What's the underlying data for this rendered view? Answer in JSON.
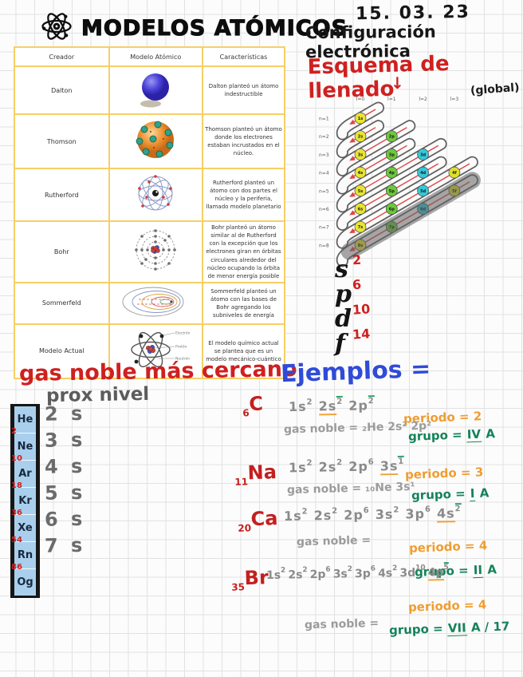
{
  "header": {
    "title": "MODELOS ATÓMICOS"
  },
  "notes_top": {
    "date": "15. 03. 23",
    "subtitle": "Configuración electrónica",
    "scheme_heading": "Esquema de llenado",
    "scheme_arrow": "↓",
    "scheme_note": "(global)"
  },
  "models_table": {
    "headers": [
      "Creador",
      "Modelo Atómico",
      "Características"
    ],
    "rows": [
      {
        "creator": "Dalton",
        "icon": "dalton-solid-sphere",
        "text": "Dalton planteó un átomo indestructible"
      },
      {
        "creator": "Thomson",
        "icon": "thomson-plum-pudding",
        "text": "Thomson planteó un átomo donde los electrones estaban incrustados en el núcleo."
      },
      {
        "creator": "Rutherford",
        "icon": "rutherford-planetary",
        "text": "Rutherford planteó un átomo con dos partes el núcleo y la periferia, llamado modelo planetario"
      },
      {
        "creator": "Bohr",
        "icon": "bohr-orbits",
        "text": "Bohr planteó un átomo similar al de Rutherford con la excepción que los electrones giran en órbitas circulares alrededor del núcleo ocupando la órbita de menor energía posible"
      },
      {
        "creator": "Sommerfeld",
        "icon": "sommerfeld-ellipses",
        "text": "Sommerfeld planteó un átomo con las bases de Bohr agregando los subniveles de energía"
      },
      {
        "creator": "Modelo Actual",
        "icon": "quantum-model",
        "text": "El modelo químico actual se plantea que es un modelo mecánico-cuántico"
      }
    ],
    "quantum_labels": {
      "electron": "Electrón",
      "proton": "Protón",
      "neutron": "Neutrón"
    }
  },
  "filling_scheme": {
    "col_labels": [
      "l=0",
      "l=1",
      "l=2",
      "l=3"
    ],
    "row_labels": [
      "n=1",
      "n=2",
      "n=3",
      "n=4",
      "n=5",
      "n=6",
      "n=7",
      "n=8"
    ],
    "subshells": [
      {
        "label": "1s",
        "n": 1,
        "l": 0
      },
      {
        "label": "2s",
        "n": 2,
        "l": 0
      },
      {
        "label": "2p",
        "n": 2,
        "l": 1
      },
      {
        "label": "3s",
        "n": 3,
        "l": 0
      },
      {
        "label": "3p",
        "n": 3,
        "l": 1
      },
      {
        "label": "3d",
        "n": 3,
        "l": 2
      },
      {
        "label": "4s",
        "n": 4,
        "l": 0
      },
      {
        "label": "4p",
        "n": 4,
        "l": 1
      },
      {
        "label": "4d",
        "n": 4,
        "l": 2
      },
      {
        "label": "4f",
        "n": 4,
        "l": 3
      },
      {
        "label": "5s",
        "n": 5,
        "l": 0
      },
      {
        "label": "5p",
        "n": 5,
        "l": 1
      },
      {
        "label": "5d",
        "n": 5,
        "l": 2
      },
      {
        "label": "5f",
        "n": 5,
        "l": 3
      },
      {
        "label": "6s",
        "n": 6,
        "l": 0
      },
      {
        "label": "6p",
        "n": 6,
        "l": 1
      },
      {
        "label": "6d",
        "n": 6,
        "l": 2
      },
      {
        "label": "7s",
        "n": 7,
        "l": 0
      },
      {
        "label": "7p",
        "n": 7,
        "l": 1
      },
      {
        "label": "8s",
        "n": 8,
        "l": 0
      }
    ],
    "colors": {
      "0": "#e8e434",
      "1": "#6cc93a",
      "2": "#35c8d8",
      "3": "#dede2e"
    },
    "highlight_diagonal": 8
  },
  "capacities": [
    {
      "letter": "s",
      "max": "2"
    },
    {
      "letter": "p",
      "max": "6"
    },
    {
      "letter": "d",
      "max": "10"
    },
    {
      "letter": "f",
      "max": "14"
    }
  ],
  "noble_gases": {
    "heading": "gas noble más cercano",
    "subheading": "prox nivel",
    "items": [
      {
        "symbol": "He",
        "z": "2",
        "next_level": "2 s"
      },
      {
        "symbol": "Ne",
        "z": "10",
        "next_level": "3 s"
      },
      {
        "symbol": "Ar",
        "z": "18",
        "next_level": "4 s"
      },
      {
        "symbol": "Kr",
        "z": "36",
        "next_level": "5 s"
      },
      {
        "symbol": "Xe",
        "z": "54",
        "next_level": "6 s"
      },
      {
        "symbol": "Rn",
        "z": "86",
        "next_level": "7 s"
      },
      {
        "symbol": "Og",
        "z": "",
        "next_level": ""
      }
    ]
  },
  "examples": {
    "heading": "Ejemplos =",
    "items": [
      {
        "z": "6",
        "symbol": "C",
        "config_tokens": [
          [
            "1s",
            "2",
            ""
          ],
          [
            "2s",
            "2",
            "og"
          ],
          [
            "2p",
            "2",
            "g"
          ]
        ],
        "noble_label": "gas noble =",
        "noble_value": "₂He 2s² 2p²",
        "periodo_label": "periodo =",
        "periodo_value": "2",
        "grupo_label": "grupo =",
        "grupo_roman": "IV",
        "grupo_rest": "A"
      },
      {
        "z": "11",
        "symbol": "Na",
        "config_tokens": [
          [
            "1s",
            "2",
            ""
          ],
          [
            "2s",
            "2",
            ""
          ],
          [
            "2p",
            "6",
            ""
          ],
          [
            "3s",
            "1",
            "og"
          ]
        ],
        "noble_label": "gas noble =",
        "noble_value": "₁₀Ne 3s¹",
        "periodo_label": "periodo =",
        "periodo_value": "3",
        "grupo_label": "grupo =",
        "grupo_roman": "I",
        "grupo_rest": "A"
      },
      {
        "z": "20",
        "symbol": "Ca",
        "config_tokens": [
          [
            "1s",
            "2",
            ""
          ],
          [
            "2s",
            "2",
            ""
          ],
          [
            "2p",
            "6",
            ""
          ],
          [
            "3s",
            "2",
            ""
          ],
          [
            "3p",
            "6",
            ""
          ],
          [
            "4s",
            "2",
            "og"
          ]
        ],
        "noble_label": "gas noble =",
        "noble_value": "",
        "periodo_label": "periodo =",
        "periodo_value": "4",
        "grupo_label": "grupo =",
        "grupo_roman": "II",
        "grupo_rest": "A"
      },
      {
        "z": "35",
        "symbol": "Br",
        "config_tokens": [
          [
            "1s",
            "2",
            ""
          ],
          [
            "2s",
            "2",
            ""
          ],
          [
            "2p",
            "6",
            ""
          ],
          [
            "3s",
            "2",
            ""
          ],
          [
            "3p",
            "6",
            ""
          ],
          [
            "4s",
            "2",
            ""
          ],
          [
            "3d",
            "10",
            ""
          ],
          [
            "4p",
            "5",
            "og"
          ]
        ],
        "noble_label": "gas noble =",
        "noble_value": "",
        "periodo_label": "periodo =",
        "periodo_value": "4",
        "grupo_label": "grupo =",
        "grupo_roman": "VII",
        "grupo_rest": "A / 17"
      }
    ]
  }
}
